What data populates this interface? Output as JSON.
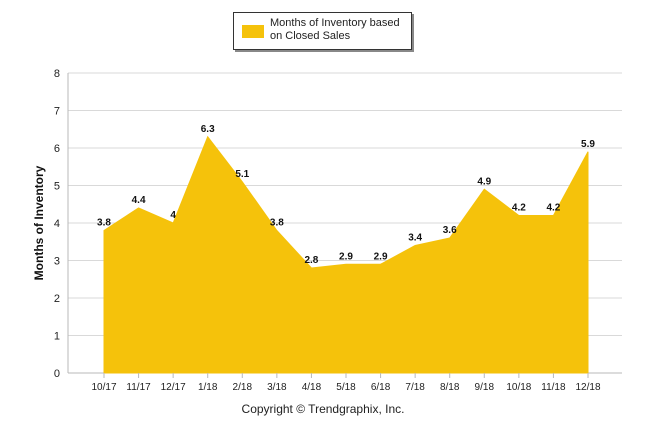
{
  "chart_data": {
    "type": "area",
    "categories": [
      "10/17",
      "11/17",
      "12/17",
      "1/18",
      "2/18",
      "3/18",
      "4/18",
      "5/18",
      "6/18",
      "7/18",
      "8/18",
      "9/18",
      "10/18",
      "11/18",
      "12/18"
    ],
    "series": [
      {
        "name": "Months of Inventory based on Closed Sales",
        "values": [
          3.8,
          4.4,
          4,
          6.3,
          5.1,
          3.8,
          2.8,
          2.9,
          2.9,
          3.4,
          3.6,
          4.9,
          4.2,
          4.2,
          5.9
        ],
        "labels": [
          "3.8",
          "4.4",
          "4",
          "6.3",
          "5.1",
          "3.8",
          "2.8",
          "2.9",
          "2.9",
          "3.4",
          "3.6",
          "4.9",
          "4.2",
          "4.2",
          "5.9"
        ]
      }
    ],
    "title": "",
    "xlabel": "",
    "ylabel": "Months of Inventory",
    "ylim": [
      0,
      8
    ],
    "yticks": [
      "0",
      "1",
      "2",
      "3",
      "4",
      "5",
      "6",
      "7",
      "8"
    ],
    "grid": true,
    "legend": "top-center",
    "color": "#f5c20b"
  },
  "footer": {
    "copyright": "Copyright © Trendgraphix, Inc."
  }
}
